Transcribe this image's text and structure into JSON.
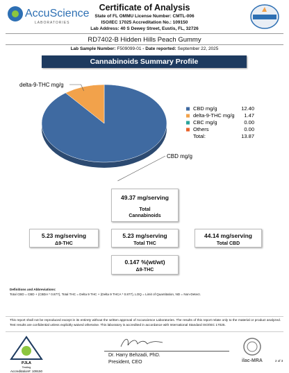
{
  "header": {
    "logo_name": "AccuScience",
    "logo_sub": "LABORATORIES",
    "title": "Certificate of Analysis",
    "license": "State of FL OMMU License Number: CMTL-006",
    "accreditation": "ISO/IEC 17025 Accreditation No.: 109150",
    "address": "Lab Address: 40 S Dewey Street, Eustis, FL, 32726"
  },
  "product": {
    "name": "RD7402-B Hidden Hills Peach Gummy",
    "sample_label": "Lab Sample Number:",
    "sample_number": "F509099-01",
    "date_label": "- Date reported:",
    "date": "September 22, 2025"
  },
  "section_title": "Cannabinoids Summary Profile",
  "chart_data": {
    "type": "pie",
    "categories": [
      "CBD mg/g",
      "delta-9-THC mg/g",
      "CBC mg/g",
      "Others"
    ],
    "values": [
      12.4,
      1.47,
      0,
      0
    ],
    "value_labels": [
      "12.40",
      "1.47",
      "0.00",
      "0.00"
    ],
    "colors": [
      "#3f6aa1",
      "#f2a24b",
      "#2aa39a",
      "#e8622a"
    ],
    "total_label": "Total:",
    "total": 13.87
  },
  "summary": [
    {
      "value": "49.37 mg/serving",
      "label": "Total Cannabinoids"
    },
    {
      "value": "5.23 mg/serving",
      "label": "Δ9-THC"
    },
    {
      "value": "5.23 mg/serving",
      "label": "Total THC"
    },
    {
      "value": "44.14 mg/serving",
      "label": "Total CBD"
    },
    {
      "value": "0.147 %(wt/wt)",
      "label": "Δ9-THC"
    }
  ],
  "definitions": {
    "title": "Definitions and Abbreviations:",
    "text": "Total CBD = CBD + (CBDA * 0.877), Total THC = Delta 9 THC + (Delta 9 THCA * 0.877), LOQ = Limit of Quantitation, ND = Non-Detect."
  },
  "disclaimer": "This report shall not be reproduced except in its entirety without the written approval of Accuscience Laboratories. The results of this report relate only to the material or product analyzed. Test results are confidential unless explicitly waived otherwise. This laboratory is accredited in accordance with International Standard ISO/IEC 17025.",
  "footer": {
    "pjla": "PJLA",
    "pjla_sub": "Testing",
    "pjla_accreditation": "Accreditation#: 109150",
    "signer": "Dr. Harry Behzadi, PhD.",
    "signer_title": "President, CEO",
    "ilac": "ilac-MRA",
    "page": "2 of 3"
  }
}
